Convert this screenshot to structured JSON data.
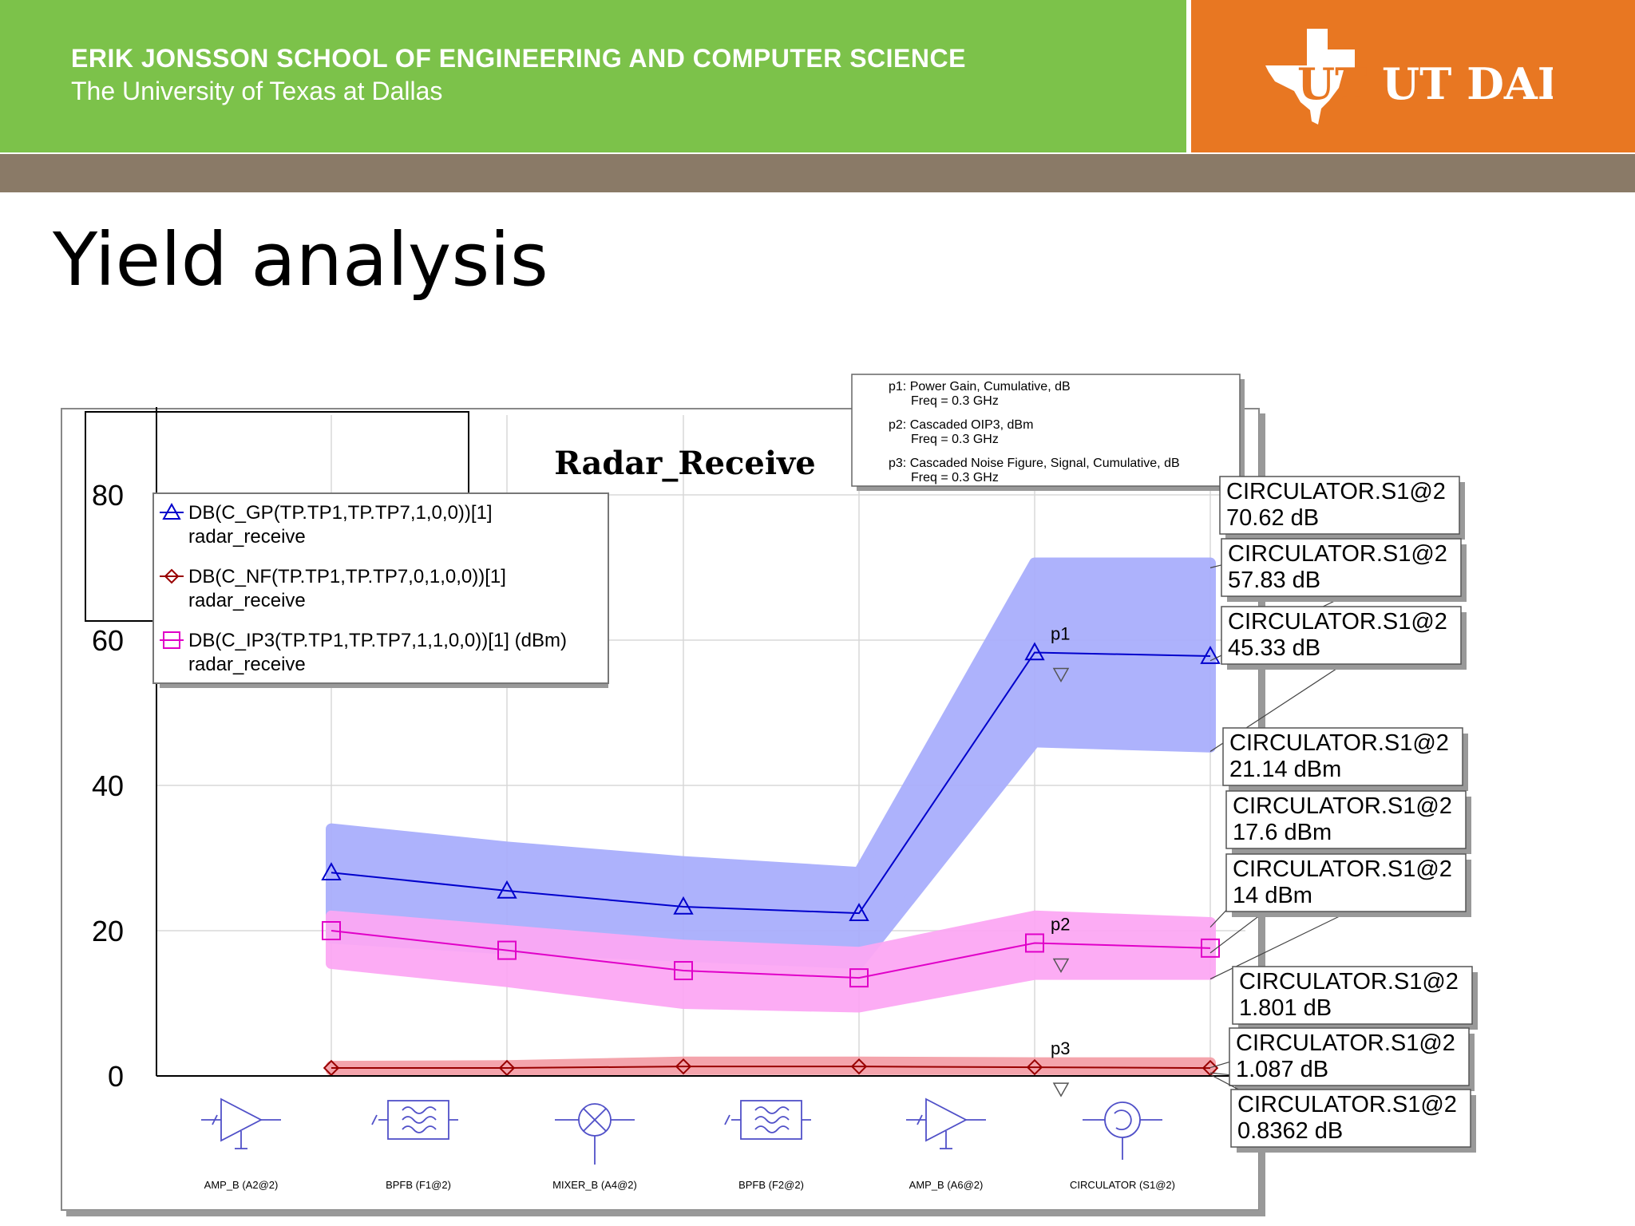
{
  "header": {
    "school": "ERIK JONSSON SCHOOL OF ENGINEERING AND COMPUTER SCIENCE",
    "university": "The University of Texas at Dallas",
    "logo_text": "UT DALLAS",
    "colors": {
      "green": "#7cc24a",
      "orange": "#e87722",
      "stripe": "#8a7a67"
    }
  },
  "slide": {
    "title": "Yield analysis"
  },
  "marker_box": {
    "p1": "p1: Power Gain, Cumulative, dB",
    "p1_freq": "Freq = 0.3 GHz",
    "p2": "p2: Cascaded OIP3, dBm",
    "p2_freq": "Freq = 0.3 GHz",
    "p3": "p3: Cascaded Noise Figure, Signal, Cumulative, dB",
    "p3_freq": "Freq = 0.3 GHz"
  },
  "chart_data": {
    "type": "line",
    "title": "Radar_Receive",
    "categories": [
      "AMP_B (A2@2)",
      "BPFB (F1@2)",
      "MIXER_B (A4@2)",
      "BPFB (F2@2)",
      "AMP_B (A6@2)",
      "CIRCULATOR (S1@2)"
    ],
    "ylim": [
      0,
      80
    ],
    "yticks": [
      0,
      20,
      40,
      60,
      80
    ],
    "grid": true,
    "legend_placement": "top-left",
    "series": [
      {
        "name": "DB(C_GP(TP.TP1,TP.TP7,1,0,0))[1]",
        "sub": "radar_receive",
        "color": "#0000cc",
        "band_color": "#a9aefc",
        "marker": "triangle",
        "values": [
          28,
          25.5,
          23.3,
          22.4,
          58.3,
          57.8
        ],
        "band_low": [
          19,
          17.5,
          16.5,
          15.5,
          46,
          45.3
        ],
        "band_high": [
          34,
          31.5,
          29.5,
          28,
          70.6,
          70.6
        ]
      },
      {
        "name": "DB(C_NF(TP.TP1,TP.TP7,0,1,0,0))[1]",
        "sub": "radar_receive",
        "color": "#990000",
        "band_color": "#f4a0a8",
        "marker": "diamond",
        "values": [
          1.1,
          1.1,
          1.3,
          1.3,
          1.2,
          1.087
        ],
        "band_low": [
          0.8,
          0.8,
          0.9,
          0.9,
          0.9,
          0.836
        ],
        "band_high": [
          1.3,
          1.4,
          1.9,
          1.9,
          1.8,
          1.8
        ]
      },
      {
        "name": "DB(C_IP3(TP.TP1,TP.TP7,1,1,0,0))[1] (dBm)",
        "sub": "radar_receive",
        "color": "#e000c8",
        "band_color": "#fca8f4",
        "marker": "square",
        "values": [
          20,
          17.3,
          14.5,
          13.5,
          18.3,
          17.6
        ],
        "band_low": [
          15.5,
          13,
          10,
          9.5,
          14,
          14
        ],
        "band_high": [
          22,
          20,
          18,
          17,
          22,
          21.1
        ]
      }
    ],
    "point_labels": [
      "p1",
      "p2",
      "p3"
    ],
    "annotations": [
      {
        "name": "CIRCULATOR.S1@2",
        "value": "70.62 dB"
      },
      {
        "name": "CIRCULATOR.S1@2",
        "value": "57.83 dB"
      },
      {
        "name": "CIRCULATOR.S1@2",
        "value": "45.33 dB"
      },
      {
        "name": "CIRCULATOR.S1@2",
        "value": "21.14 dBm"
      },
      {
        "name": "CIRCULATOR.S1@2",
        "value": "17.6 dBm"
      },
      {
        "name": "CIRCULATOR.S1@2",
        "value": "14 dBm"
      },
      {
        "name": "CIRCULATOR.S1@2",
        "value": "1.801 dB"
      },
      {
        "name": "CIRCULATOR.S1@2",
        "value": "1.087 dB"
      },
      {
        "name": "CIRCULATOR.S1@2",
        "value": "0.8362 dB"
      }
    ],
    "annotation_values": [
      70.62,
      57.83,
      45.33,
      21.14,
      17.6,
      14,
      1.801,
      1.087,
      0.8362
    ]
  }
}
